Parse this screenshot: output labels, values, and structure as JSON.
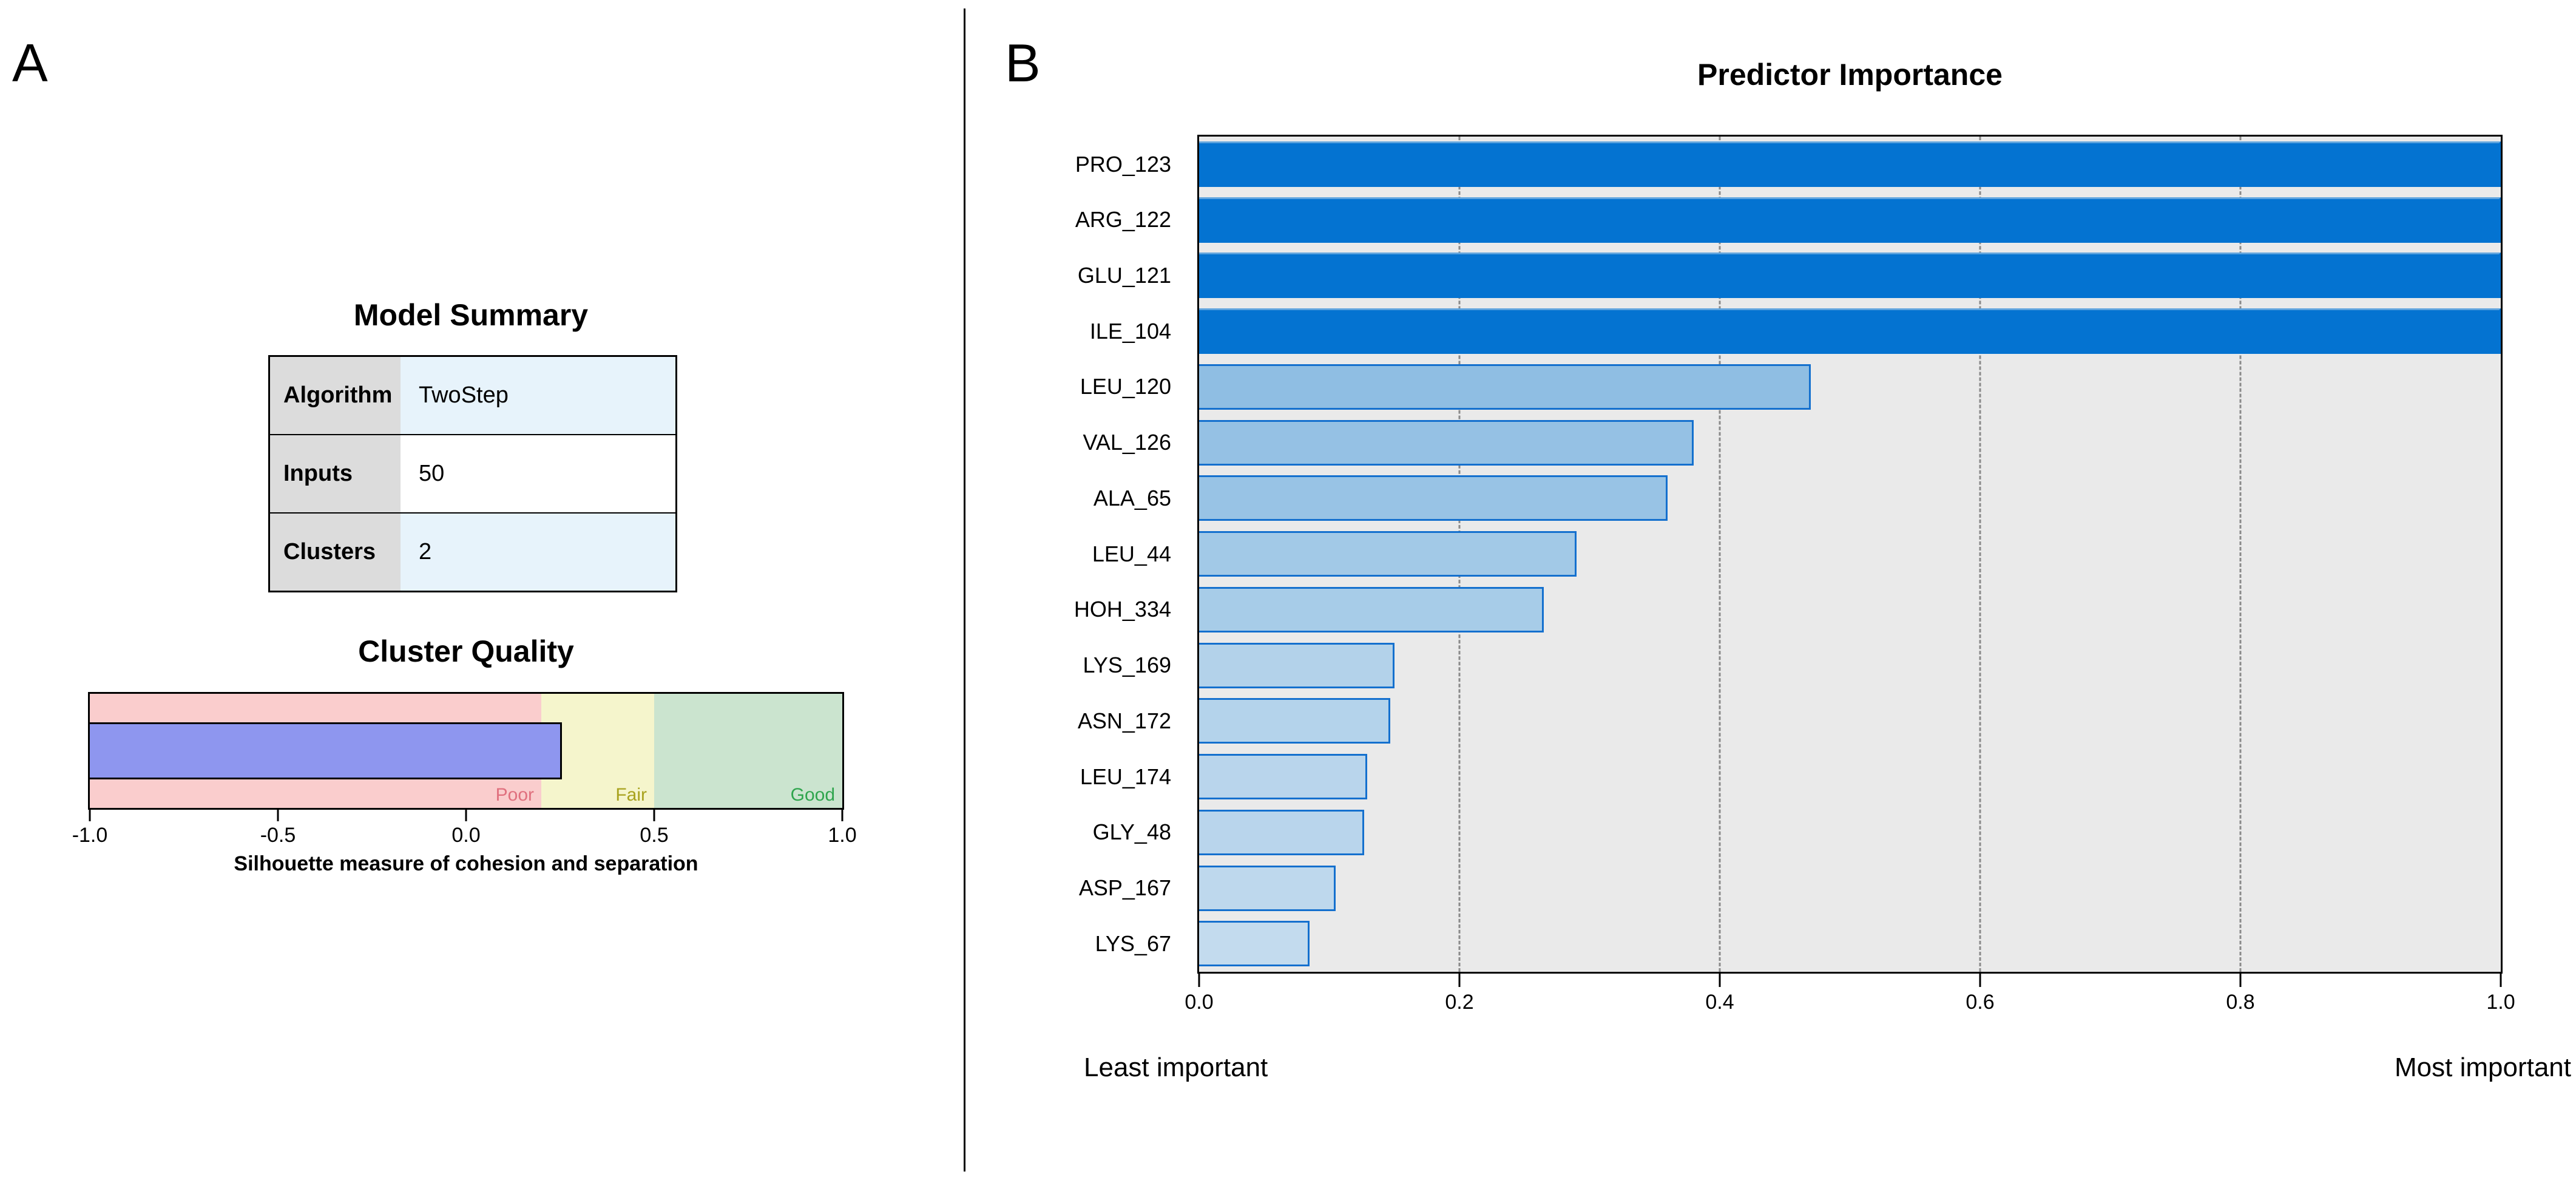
{
  "panel_a": {
    "label": "A",
    "model_summary": {
      "title": "Model Summary",
      "rows": [
        {
          "label": "Algorithm",
          "value": "TwoStep"
        },
        {
          "label": "Inputs",
          "value": "50"
        },
        {
          "label": "Clusters",
          "value": "2"
        }
      ],
      "label_col_color": "#DCDCDC",
      "stripe_colors": [
        "#E7F3FB",
        "#FFFFFF",
        "#E7F3FB"
      ]
    },
    "cluster_quality": {
      "title": "Cluster Quality",
      "axis_title": "Silhouette measure of cohesion and separation",
      "axis_range": [
        -1.0,
        1.0
      ],
      "ticks": [
        {
          "label": "-1.0",
          "value": -1.0
        },
        {
          "label": "-0.5",
          "value": -0.5
        },
        {
          "label": "0.0",
          "value": 0.0
        },
        {
          "label": "0.5",
          "value": 0.5
        },
        {
          "label": "1.0",
          "value": 1.0
        }
      ],
      "zones": [
        {
          "label": "Poor",
          "from": -1.0,
          "to": 0.2,
          "color": "#FACDCD",
          "label_color": "#E0707E"
        },
        {
          "label": "Fair",
          "from": 0.2,
          "to": 0.5,
          "color": "#F5F5CC",
          "label_color": "#A8A21E"
        },
        {
          "label": "Good",
          "from": 0.5,
          "to": 1.0,
          "color": "#CBE4CF",
          "label_color": "#2FA54D"
        }
      ],
      "bar": {
        "value": 0.25,
        "color": "#8E96EF"
      }
    }
  },
  "panel_b": {
    "label": "B",
    "title": "Predictor Importance",
    "x_range": [
      0.0,
      1.0
    ],
    "gridlines": [
      0.2,
      0.4,
      0.6,
      0.8
    ],
    "x_ticks": [
      {
        "label": "0.0",
        "value": 0.0
      },
      {
        "label": "0.2",
        "value": 0.2
      },
      {
        "label": "0.4",
        "value": 0.4
      },
      {
        "label": "0.6",
        "value": 0.6
      },
      {
        "label": "0.8",
        "value": 0.8
      },
      {
        "label": "1.0",
        "value": 1.0
      }
    ],
    "footer_left": "Least important",
    "footer_right": "Most important",
    "plot_bg_color": "#EAEAEA",
    "bars": [
      {
        "label": "PRO_123",
        "value": 1.0,
        "fill": "#0473D1",
        "border": "#0473D1",
        "highlight": "#5FA4DE"
      },
      {
        "label": "ARG_122",
        "value": 1.0,
        "fill": "#0473D1",
        "border": "#0473D1",
        "highlight": "#5FA4DE"
      },
      {
        "label": "GLU_121",
        "value": 1.0,
        "fill": "#0473D1",
        "border": "#0473D1",
        "highlight": "#5FA4DE"
      },
      {
        "label": "ILE_104",
        "value": 1.0,
        "fill": "#0473D1",
        "border": "#0473D1",
        "highlight": "#5FA4DE"
      },
      {
        "label": "LEU_120",
        "value": 0.47,
        "fill": "#8FBEE3",
        "border": "#1470CE",
        "highlight": ""
      },
      {
        "label": "VAL_126",
        "value": 0.38,
        "fill": "#95C1E4",
        "border": "#1470CE",
        "highlight": ""
      },
      {
        "label": "ALA_65",
        "value": 0.36,
        "fill": "#98C3E5",
        "border": "#1470CE",
        "highlight": ""
      },
      {
        "label": "LEU_44",
        "value": 0.29,
        "fill": "#A2C9E7",
        "border": "#1470CE",
        "highlight": ""
      },
      {
        "label": "HOH_334",
        "value": 0.265,
        "fill": "#A7CCE8",
        "border": "#1470CE",
        "highlight": ""
      },
      {
        "label": "LYS_169",
        "value": 0.15,
        "fill": "#B3D2EA",
        "border": "#1470CE",
        "highlight": ""
      },
      {
        "label": "ASN_172",
        "value": 0.147,
        "fill": "#B4D3EB",
        "border": "#1470CE",
        "highlight": ""
      },
      {
        "label": "LEU_174",
        "value": 0.129,
        "fill": "#B9D5EC",
        "border": "#1470CE",
        "highlight": ""
      },
      {
        "label": "GLY_48",
        "value": 0.127,
        "fill": "#B9D5EC",
        "border": "#1470CE",
        "highlight": ""
      },
      {
        "label": "ASP_167",
        "value": 0.105,
        "fill": "#BED8ED",
        "border": "#1470CE",
        "highlight": ""
      },
      {
        "label": "LYS_67",
        "value": 0.085,
        "fill": "#C3DBEE",
        "border": "#1470CE",
        "highlight": ""
      }
    ]
  },
  "chart_data": [
    {
      "type": "table",
      "title": "Model Summary",
      "rows": [
        [
          "Algorithm",
          "TwoStep"
        ],
        [
          "Inputs",
          "50"
        ],
        [
          "Clusters",
          "2"
        ]
      ]
    },
    {
      "type": "bar",
      "orientation": "horizontal",
      "title": "Cluster Quality",
      "xlabel": "Silhouette measure of cohesion and separation",
      "series": [
        {
          "name": "Silhouette measure",
          "values": [
            0.25
          ]
        }
      ],
      "xlim": [
        -1.0,
        1.0
      ],
      "x_ticks": [
        -1.0,
        -0.5,
        0.0,
        0.5,
        1.0
      ],
      "zones": [
        {
          "label": "Poor",
          "range": [
            -1.0,
            0.2
          ]
        },
        {
          "label": "Fair",
          "range": [
            0.2,
            0.5
          ]
        },
        {
          "label": "Good",
          "range": [
            0.5,
            1.0
          ]
        }
      ],
      "grid": false
    },
    {
      "type": "bar",
      "orientation": "horizontal",
      "title": "Predictor Importance",
      "categories": [
        "PRO_123",
        "ARG_122",
        "GLU_121",
        "ILE_104",
        "LEU_120",
        "VAL_126",
        "ALA_65",
        "LEU_44",
        "HOH_334",
        "LYS_169",
        "ASN_172",
        "LEU_174",
        "GLY_48",
        "ASP_167",
        "LYS_67"
      ],
      "values": [
        1.0,
        1.0,
        1.0,
        1.0,
        0.47,
        0.38,
        0.36,
        0.29,
        0.265,
        0.15,
        0.147,
        0.129,
        0.127,
        0.105,
        0.085
      ],
      "xlim": [
        0.0,
        1.0
      ],
      "x_ticks": [
        0.0,
        0.2,
        0.4,
        0.6,
        0.8,
        1.0
      ],
      "grid": true,
      "annotations": [
        "Least important",
        "Most important"
      ]
    }
  ]
}
